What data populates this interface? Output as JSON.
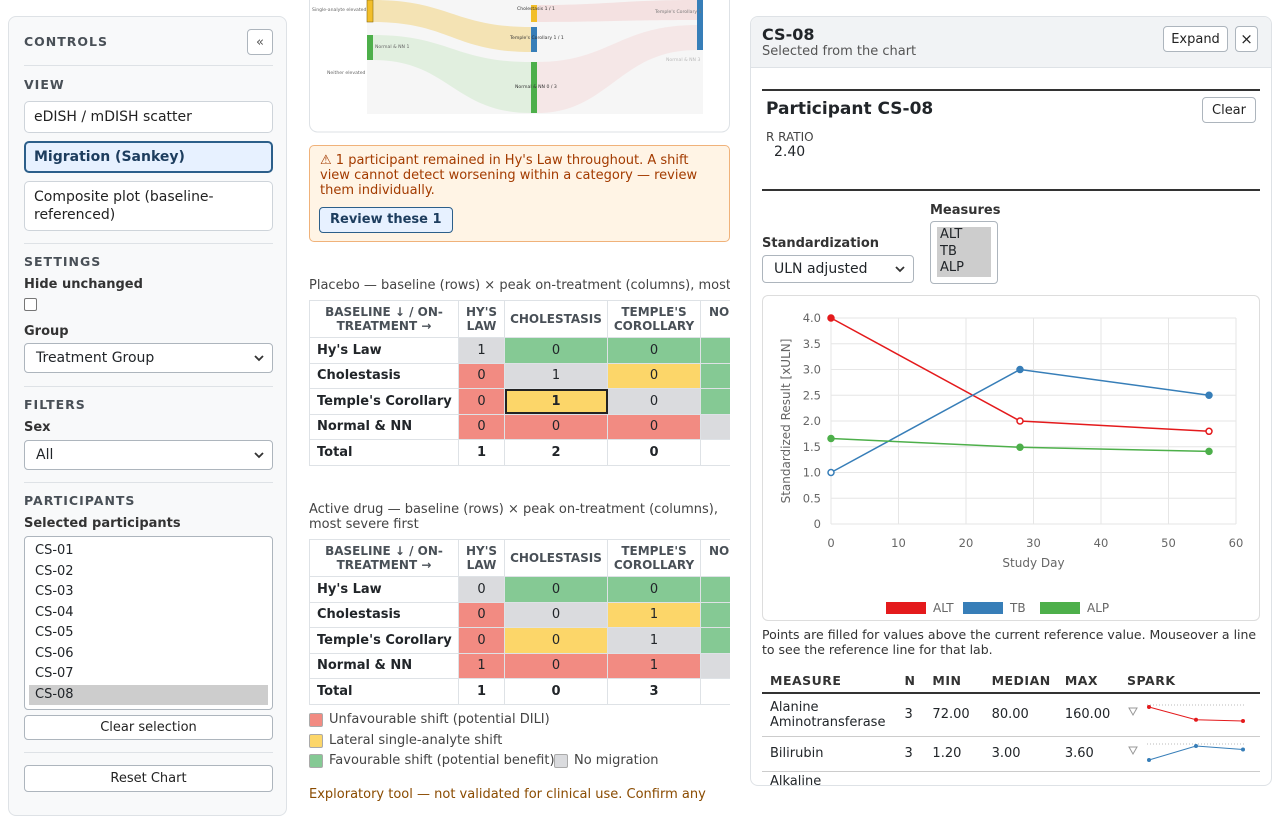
{
  "sidebar": {
    "title": "CONTROLS",
    "collapse": "«",
    "view": {
      "heading": "VIEW",
      "options": [
        "eDISH / mDISH scatter",
        "Migration (Sankey)",
        "Composite plot (baseline-referenced)"
      ],
      "selected": 1
    },
    "settings": {
      "heading": "SETTINGS",
      "hide_unchanged": "Hide unchanged",
      "group_label": "Group",
      "group_value": "Treatment Group"
    },
    "filters": {
      "heading": "FILTERS",
      "sex_label": "Sex",
      "sex_value": "All"
    },
    "participants": {
      "heading": "PARTICIPANTS",
      "label": "Selected participants",
      "ids": [
        "CS-01",
        "CS-02",
        "CS-03",
        "CS-04",
        "CS-05",
        "CS-06",
        "CS-07",
        "CS-08"
      ],
      "selected": 7,
      "clear": "Clear selection"
    },
    "reset": "Reset Chart"
  },
  "sankey": {
    "labels": [
      "Single-analyte elevated",
      "Normal & NN 1",
      "Neither elevated",
      "Cholestasis 1 / 1",
      "Temple's Corollary 1 / 1",
      "Normal & NN 0 / 3",
      "Temple's Corollary 1",
      "Normal & NN 3"
    ]
  },
  "alert": {
    "text": "⚠ 1 participant remained in Hy's Law throughout. A shift view cannot detect worsening within a category — review them individually.",
    "button": "Review these 1"
  },
  "shift_tables": [
    {
      "caption": "Placebo — baseline (rows) × peak on-treatment (columns), most severe first",
      "columns": [
        "BASELINE ↓ / ON-TREATMENT →",
        "HY'S LAW",
        "CHOLESTASIS",
        "TEMPLE'S COROLLARY",
        "NORMAL & NN"
      ],
      "rows": [
        {
          "label": "Hy's Law",
          "cells": [
            1,
            0,
            0,
            null
          ]
        },
        {
          "label": "Cholestasis",
          "cells": [
            0,
            1,
            0,
            null
          ]
        },
        {
          "label": "Temple's Corollary",
          "cells": [
            0,
            1,
            0,
            null
          ]
        },
        {
          "label": "Normal & NN",
          "cells": [
            0,
            0,
            0,
            null
          ]
        }
      ],
      "total": {
        "label": "Total",
        "cells": [
          1,
          2,
          0,
          null
        ]
      },
      "highlight": [
        2,
        1
      ]
    },
    {
      "caption": "Active drug — baseline (rows) × peak on-treatment (columns), most severe first",
      "columns": [
        "BASELINE ↓ / ON-TREATMENT →",
        "HY'S LAW",
        "CHOLESTASIS",
        "TEMPLE'S COROLLARY",
        "NORMAL & NN"
      ],
      "rows": [
        {
          "label": "Hy's Law",
          "cells": [
            0,
            0,
            0,
            null
          ]
        },
        {
          "label": "Cholestasis",
          "cells": [
            0,
            0,
            1,
            null
          ]
        },
        {
          "label": "Temple's Corollary",
          "cells": [
            0,
            0,
            1,
            null
          ]
        },
        {
          "label": "Normal & NN",
          "cells": [
            1,
            0,
            1,
            null
          ]
        }
      ],
      "total": {
        "label": "Total",
        "cells": [
          1,
          0,
          3,
          null
        ]
      }
    }
  ],
  "shift_legend": [
    {
      "label": "Unfavourable shift (potential DILI)",
      "color": "#f28b82"
    },
    {
      "label": "Lateral single-analyte shift",
      "color": "#fcd669"
    },
    {
      "label": "Favourable shift (potential benefit)",
      "color": "#85c994"
    },
    {
      "label": "No migration",
      "color": "#dadbde"
    }
  ],
  "footer": "Exploratory tool — not validated for clinical use. Confirm any",
  "detail": {
    "title": "CS-08",
    "subtitle": "Selected from the chart",
    "expand": "Expand",
    "close": "×",
    "participant": "Participant CS-08",
    "clear": "Clear",
    "ratio_label": "R RATIO",
    "ratio_value": "2.40",
    "standardization_label": "Standardization",
    "standardization_value": "ULN adjusted",
    "measures_label": "Measures",
    "measures": [
      "ALT",
      "TB",
      "ALP"
    ],
    "chart": {
      "type": "line",
      "x_label": "Study Day",
      "y_label": "Standardized Result [xULN]",
      "x": [
        0,
        28,
        56
      ],
      "xlim": [
        0,
        60
      ],
      "xticks": [
        0,
        10,
        20,
        30,
        40,
        50,
        60
      ],
      "ylim": [
        0,
        4
      ],
      "yticks": [
        0,
        0.5,
        {
          "value": 1,
          "label": "1.0"
        },
        1.5,
        {
          "value": 2,
          "label": "2.0"
        },
        2.5,
        {
          "value": 3,
          "label": "3.0"
        },
        3.5,
        {
          "value": 4,
          "label": "4.0"
        }
      ],
      "grid": true,
      "series": [
        {
          "name": "ALT",
          "color": "#e41a1c",
          "values": [
            4.0,
            2.0,
            1.8
          ],
          "filled": [
            true,
            false,
            false
          ]
        },
        {
          "name": "TB",
          "color": "#377eb8",
          "values": [
            1.0,
            3.0,
            2.5
          ],
          "filled": [
            false,
            true,
            true
          ]
        },
        {
          "name": "ALP",
          "color": "#4daf4a",
          "values": [
            1.66,
            1.49,
            1.41
          ],
          "filled": [
            true,
            true,
            true
          ]
        }
      ]
    },
    "note": "Points are filled for values above the current reference value. Mouseover a line to see the reference line for that lab.",
    "stats": {
      "columns": [
        "MEASURE",
        "N",
        "MIN",
        "MEDIAN",
        "MAX",
        "SPARK"
      ],
      "rows": [
        {
          "measure": "Alanine Aminotransferase",
          "n": 3,
          "min": "72.00",
          "median": "80.00",
          "max": "160.00",
          "spark": [
            160,
            80,
            72
          ]
        },
        {
          "measure": "Bilirubin",
          "n": 3,
          "min": "1.20",
          "median": "3.00",
          "max": "3.60",
          "spark": [
            1.2,
            3.6,
            3.0
          ]
        },
        {
          "measure": "Alkaline Phosphatase"
        }
      ]
    }
  }
}
